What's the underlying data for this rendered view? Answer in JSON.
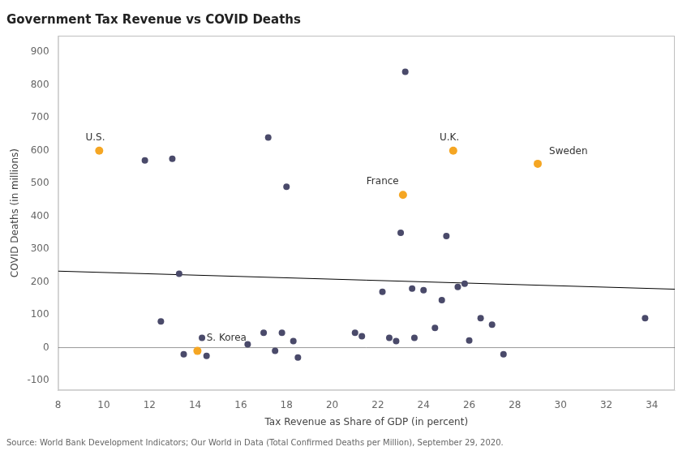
{
  "chart_data": {
    "type": "scatter",
    "title": "Government Tax Revenue vs COVID Deaths",
    "xlabel": "Tax Revenue as Share of GDP (in percent)",
    "ylabel": "COVID Deaths (in millions)",
    "source": "Source: World Bank Development Indicators; Our World in Data (Total Confirmed Deaths per Million), September 29, 2020.",
    "xlim": [
      8,
      35
    ],
    "ylim": [
      -130,
      950
    ],
    "xticks": [
      8,
      10,
      12,
      14,
      16,
      18,
      20,
      22,
      24,
      26,
      28,
      30,
      32,
      34
    ],
    "yticks": [
      -100,
      0,
      100,
      200,
      300,
      400,
      500,
      600,
      700,
      800,
      900
    ],
    "grid": false,
    "series": [
      {
        "type": "scatter",
        "color": "#4A4A6A",
        "x": [
          11.8,
          12.5,
          13.0,
          13.3,
          13.5,
          14.3,
          14.5,
          16.3,
          17.0,
          17.2,
          17.5,
          17.8,
          18.0,
          18.3,
          18.5,
          21.0,
          21.3,
          22.2,
          22.5,
          22.8,
          23.0,
          23.2,
          23.5,
          23.6,
          24.0,
          24.5,
          24.8,
          25.0,
          25.5,
          25.8,
          26.0,
          26.5,
          27.0,
          27.5,
          33.7
        ],
        "values": [
          570,
          80,
          575,
          225,
          -20,
          30,
          -25,
          10,
          45,
          640,
          -10,
          45,
          490,
          20,
          -30,
          45,
          35,
          170,
          30,
          20,
          350,
          840,
          180,
          30,
          175,
          60,
          145,
          340,
          185,
          195,
          22,
          90,
          70,
          -20,
          90
        ]
      },
      {
        "type": "scatter",
        "color": "#F5A623",
        "x": [
          9.8,
          14.1,
          23.1,
          25.3,
          29.0
        ],
        "values": [
          600,
          -10,
          465,
          600,
          560
        ]
      },
      {
        "type": "line",
        "color": "#000000",
        "x": [
          8,
          35
        ],
        "values": [
          233,
          178
        ]
      },
      {
        "type": "line",
        "color": "#999999",
        "x": [
          8,
          35
        ],
        "values": [
          0,
          0
        ]
      }
    ],
    "annotations": [
      {
        "text": "U.S.",
        "x": 9.2,
        "y": 625
      },
      {
        "text": "S. Korea",
        "x": 14.5,
        "y": 15
      },
      {
        "text": "France",
        "x": 21.5,
        "y": 490
      },
      {
        "text": "U.K.",
        "x": 24.7,
        "y": 623
      },
      {
        "text": "Sweden",
        "x": 29.5,
        "y": 583
      }
    ]
  }
}
